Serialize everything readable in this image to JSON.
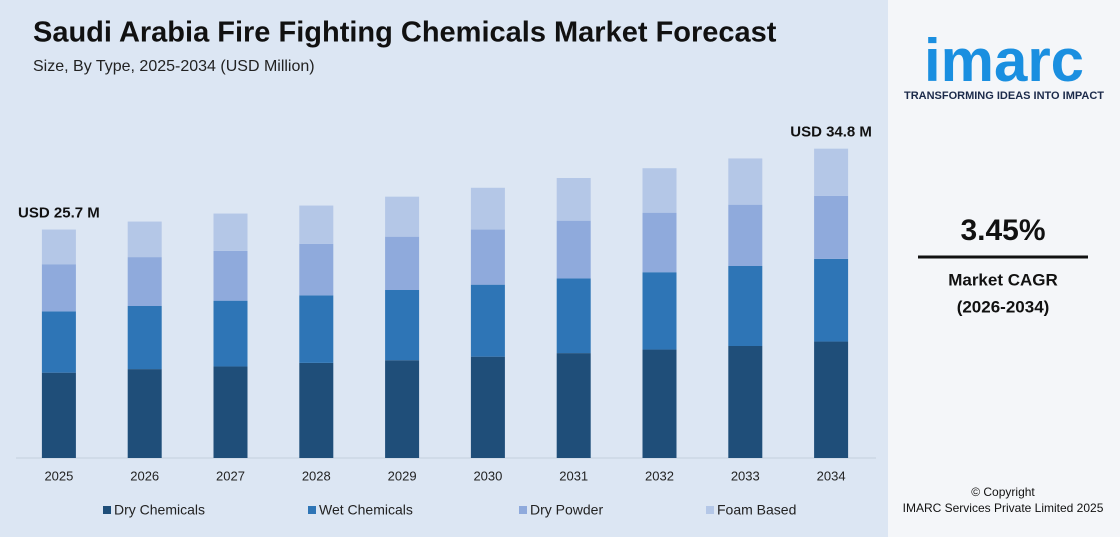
{
  "chart_data": {
    "type": "stacked-bar",
    "title": "Saudi Arabia Fire Fighting Chemicals Market Forecast",
    "subtitle": "Size, By Type, 2025-2034 (USD Million)",
    "categories": [
      "2025",
      "2026",
      "2027",
      "2028",
      "2029",
      "2030",
      "2031",
      "2032",
      "2033",
      "2034"
    ],
    "series": [
      {
        "name": "Dry Chemicals",
        "color": "#1f4e79",
        "values": [
          9.6,
          10.0,
          10.3,
          10.7,
          11.0,
          11.4,
          11.8,
          12.2,
          12.6,
          13.1
        ]
      },
      {
        "name": "Wet Chemicals",
        "color": "#2e75b6",
        "values": [
          6.9,
          7.1,
          7.4,
          7.6,
          7.9,
          8.1,
          8.4,
          8.7,
          9.0,
          9.3
        ]
      },
      {
        "name": "Dry Powder",
        "color": "#8faadc",
        "values": [
          5.3,
          5.5,
          5.6,
          5.8,
          6.0,
          6.2,
          6.5,
          6.7,
          6.9,
          7.1
        ]
      },
      {
        "name": "Foam Based",
        "color": "#b4c7e7",
        "values": [
          3.9,
          4.0,
          4.2,
          4.3,
          4.5,
          4.7,
          4.8,
          5.0,
          5.2,
          5.3
        ]
      }
    ],
    "annotations": [
      {
        "category": "2025",
        "label": "USD 25.7 M"
      },
      {
        "category": "2034",
        "label": "USD 34.8 M"
      }
    ],
    "ylim": [
      0,
      36
    ],
    "legend": "bottom"
  },
  "sidebar": {
    "logo": "imarc",
    "tagline": "TRANSFORMING IDEAS INTO IMPACT",
    "cagr": "3.45%",
    "cagr_label": "Market CAGR",
    "cagr_period": "(2026-2034)",
    "copyright": "© Copyright",
    "company": "IMARC Services Private Limited 2025"
  }
}
